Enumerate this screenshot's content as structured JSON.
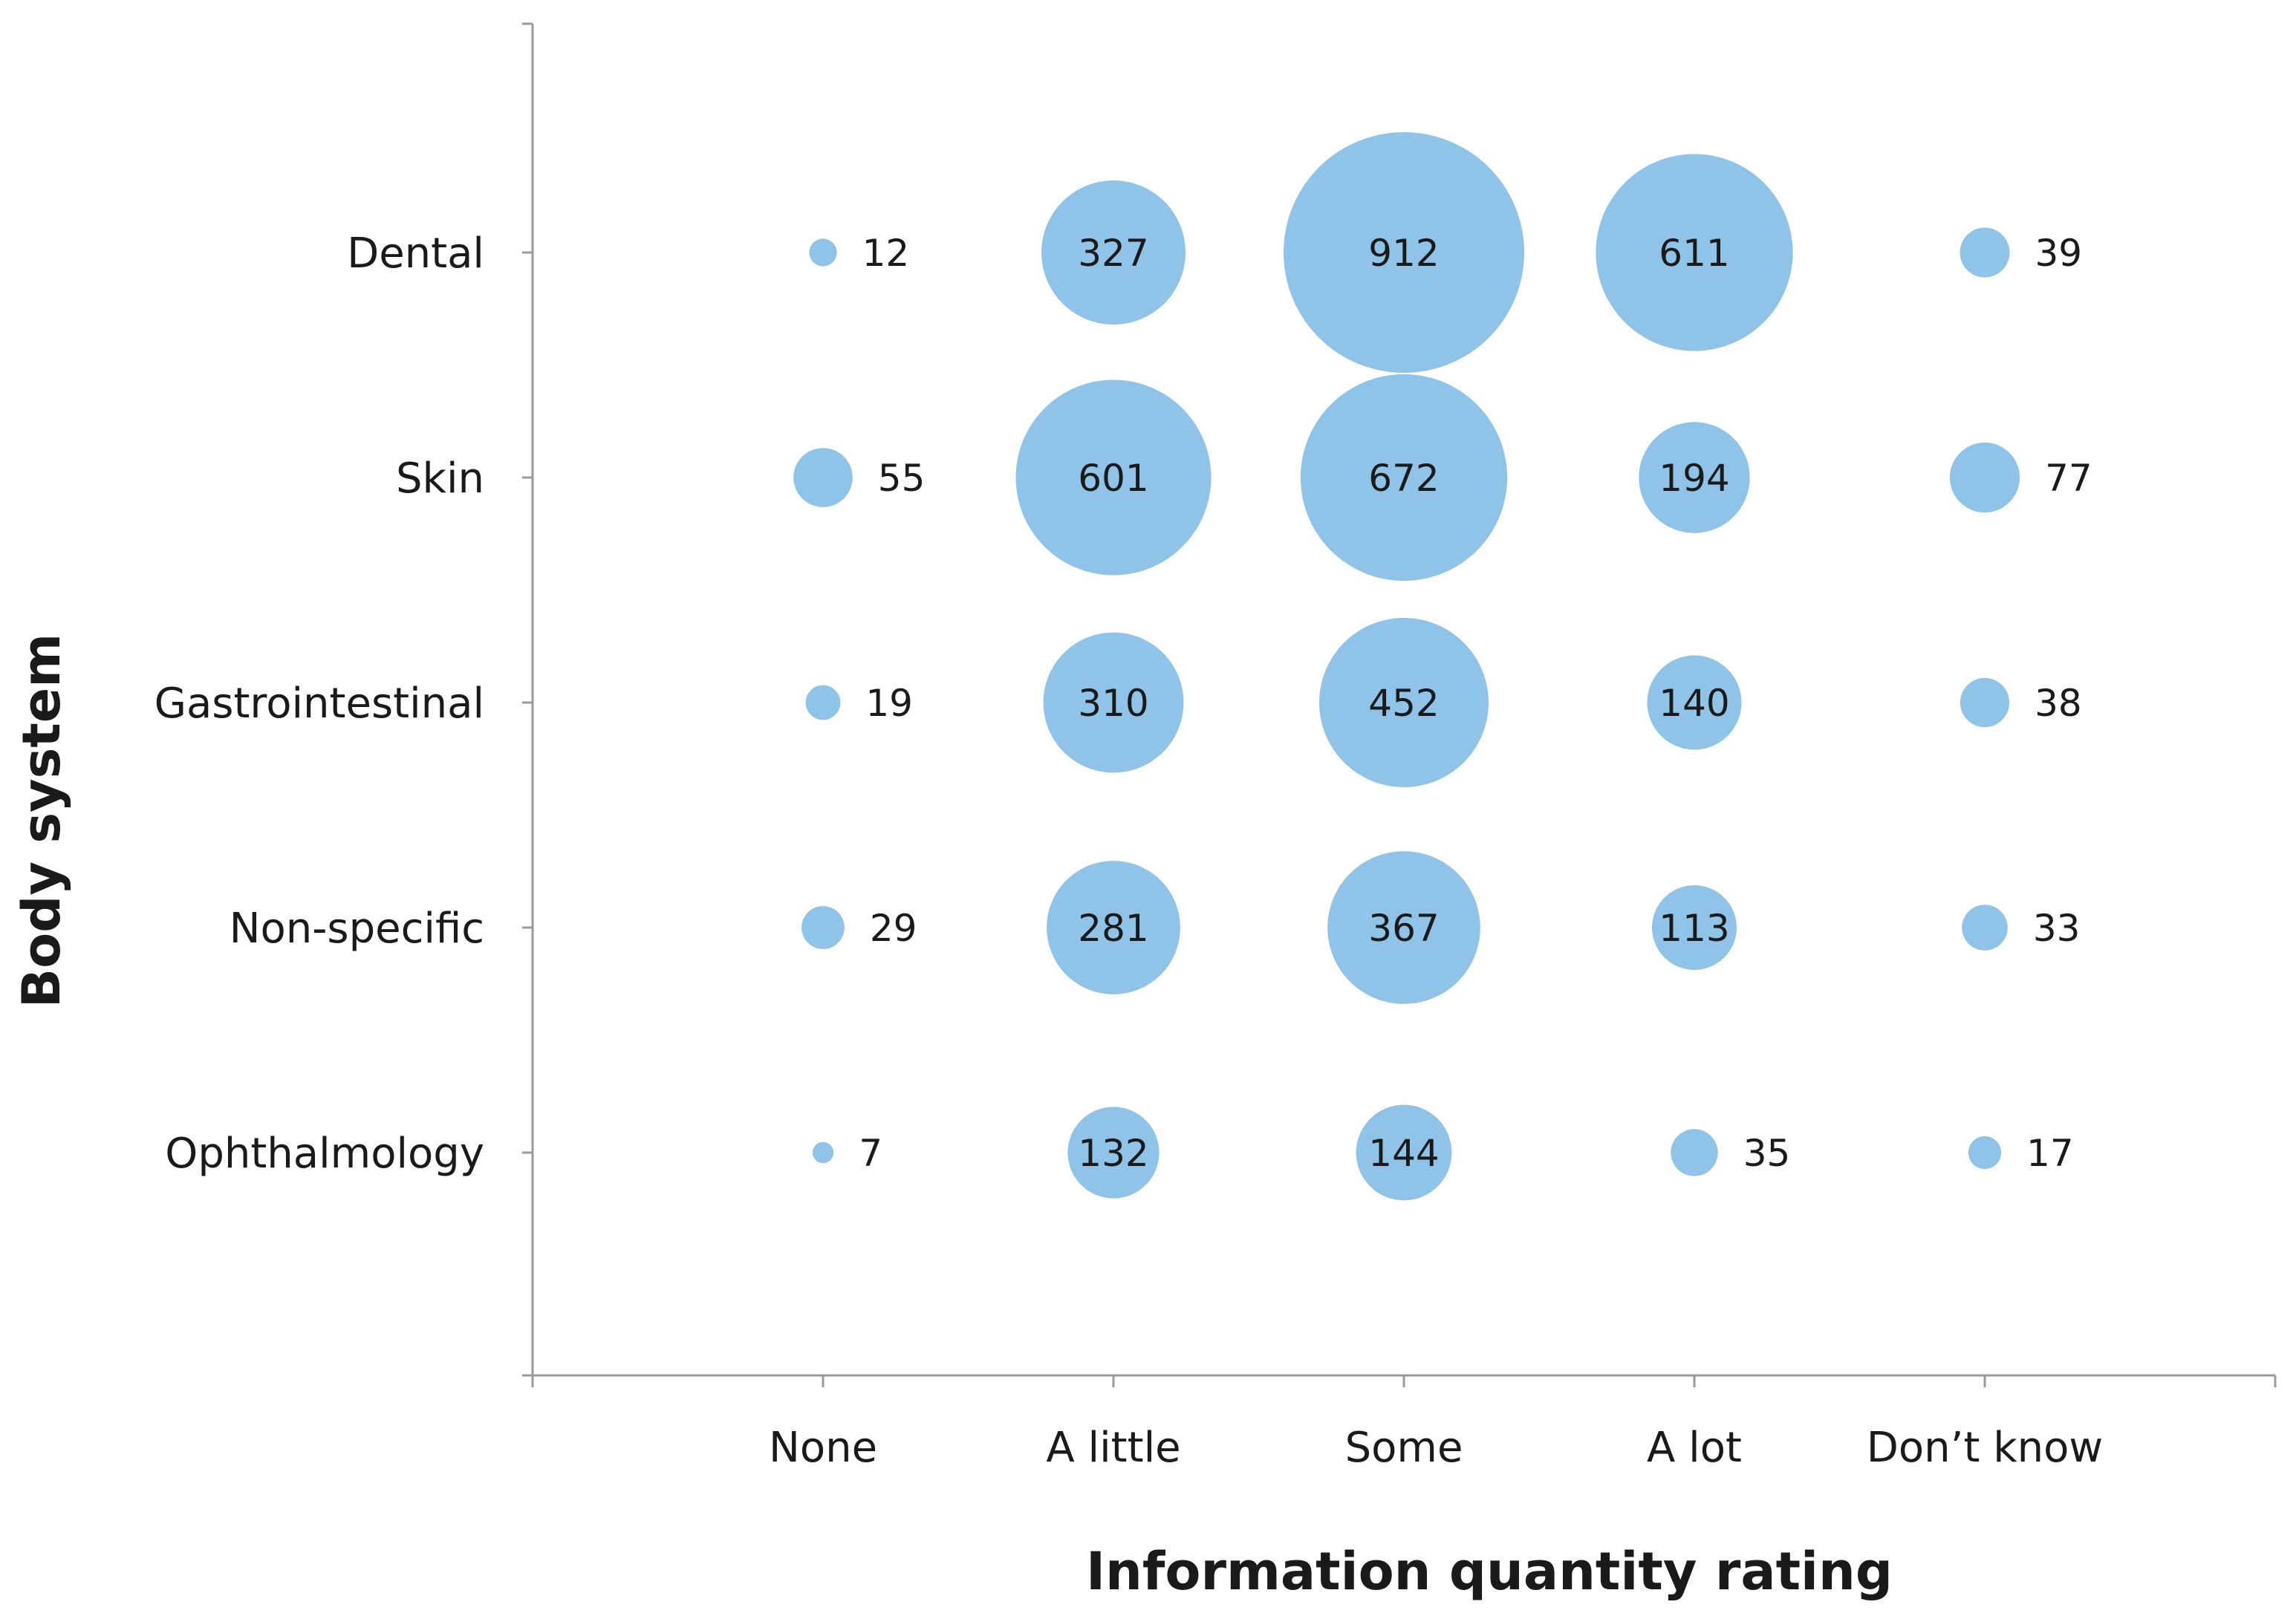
{
  "chart_data": {
    "type": "bubble",
    "xlabel": "Information quantity rating",
    "ylabel": "Body system",
    "x_categories": [
      "None",
      "A little",
      "Some",
      "A lot",
      "Don’t know"
    ],
    "y_categories": [
      "Dental",
      "Skin",
      "Gastrointestinal",
      "Non-specific",
      "Ophthalmology"
    ],
    "values": [
      [
        12,
        327,
        912,
        611,
        39
      ],
      [
        55,
        601,
        672,
        194,
        77
      ],
      [
        19,
        310,
        452,
        140,
        38
      ],
      [
        29,
        281,
        367,
        113,
        33
      ],
      [
        7,
        132,
        144,
        35,
        17
      ]
    ],
    "bubble_color": "#8fc4e8",
    "axis_color": "#9a9a9a",
    "text_color": "#1a1a1a",
    "grid": false,
    "legend": "none"
  }
}
